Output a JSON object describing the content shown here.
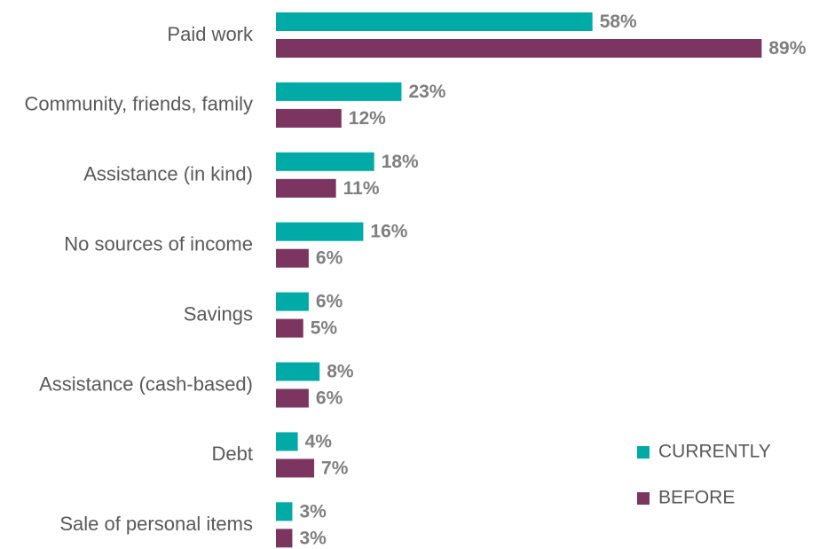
{
  "chart_data": {
    "type": "barh",
    "categories": [
      "Paid work",
      "Community, friends, family",
      "Assistance (in kind)",
      "No sources of income",
      "Savings",
      "Assistance (cash-based)",
      "Debt",
      "Sale of personal items"
    ],
    "series": [
      {
        "name": "CURRENTLY",
        "color": "#00aaa6",
        "values": [
          58,
          23,
          18,
          16,
          6,
          8,
          4,
          3
        ],
        "value_labels": [
          "58%",
          "23%",
          "18%",
          "16%",
          "6%",
          "8%",
          "4%",
          "3%"
        ]
      },
      {
        "name": "BEFORE",
        "color": "#7b3560",
        "values": [
          89,
          12,
          11,
          6,
          5,
          6,
          7,
          3
        ],
        "value_labels": [
          "89%",
          "12%",
          "11%",
          "6%",
          "5%",
          "6%",
          "7%",
          "3%"
        ]
      }
    ],
    "xlim": [
      0,
      100
    ],
    "legend": "lower right"
  }
}
